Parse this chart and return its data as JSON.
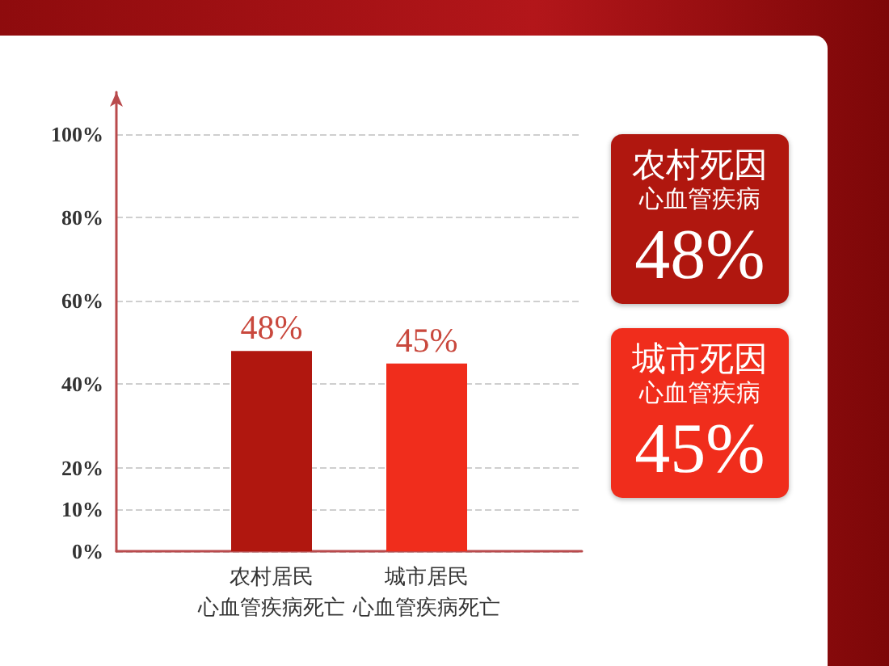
{
  "chart_data": {
    "type": "bar",
    "categories": [
      "农村居民心血管疾病死亡",
      "城市居民心血管疾病死亡"
    ],
    "values": [
      48,
      45
    ],
    "colors": [
      "#b0170f",
      "#f02d1c"
    ],
    "value_labels": [
      "48%",
      "45%"
    ],
    "ylim": [
      0,
      110
    ],
    "yticks": [
      {
        "value": 0,
        "label": "0%"
      },
      {
        "value": 10,
        "label": "10%"
      },
      {
        "value": 20,
        "label": "20%"
      },
      {
        "value": 40,
        "label": "40%"
      },
      {
        "value": 60,
        "label": "60%"
      },
      {
        "value": 80,
        "label": "80%"
      },
      {
        "value": 100,
        "label": "100%"
      }
    ],
    "grid": "y",
    "annotations": [
      "农村死因",
      "心血管疾病",
      "48%",
      "城市死因",
      "心血管疾病",
      "45%"
    ]
  }
}
